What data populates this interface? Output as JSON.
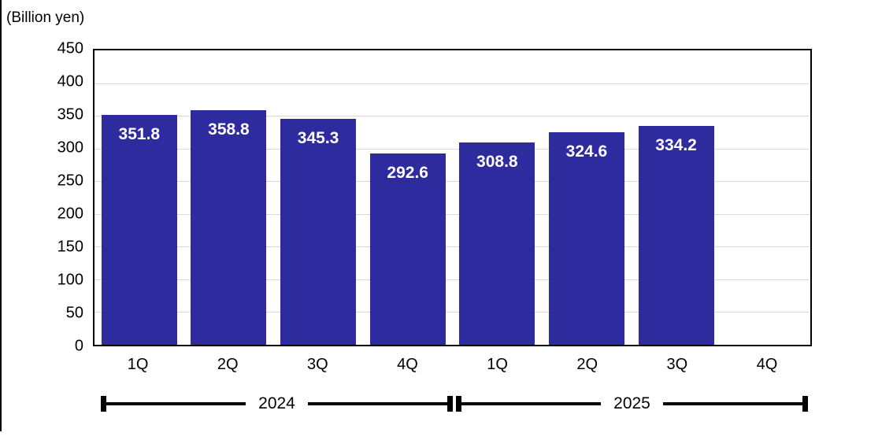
{
  "frame": {
    "background": "#ffffff",
    "left_edge_line_color": "#000000"
  },
  "chart_data": {
    "type": "bar",
    "title": "",
    "unit_label": "(Billion yen)",
    "categories": [
      "1Q",
      "2Q",
      "3Q",
      "4Q",
      "1Q",
      "2Q",
      "3Q",
      "4Q"
    ],
    "values": [
      351.8,
      358.8,
      345.3,
      292.6,
      308.8,
      324.6,
      334.2,
      null
    ],
    "value_labels": [
      "351.8",
      "358.8",
      "345.3",
      "292.6",
      "308.8",
      "324.6",
      "334.2",
      ""
    ],
    "year_groups": [
      {
        "label": "2024",
        "quarters": [
          "1Q",
          "2Q",
          "3Q",
          "4Q"
        ]
      },
      {
        "label": "2025",
        "quarters": [
          "1Q",
          "2Q",
          "3Q",
          "4Q"
        ]
      }
    ],
    "ylim": [
      0,
      450
    ],
    "ytick_step": 50,
    "yticks": [
      450,
      400,
      350,
      300,
      250,
      200,
      150,
      100,
      50,
      0
    ],
    "grid": true,
    "legend": "none",
    "bar_color": "#2e2b9e",
    "bar_label_color": "#ffffff",
    "gridline_color": "#d9d9d9",
    "axis_frame_color": "#000000",
    "text_color": "#000000"
  }
}
